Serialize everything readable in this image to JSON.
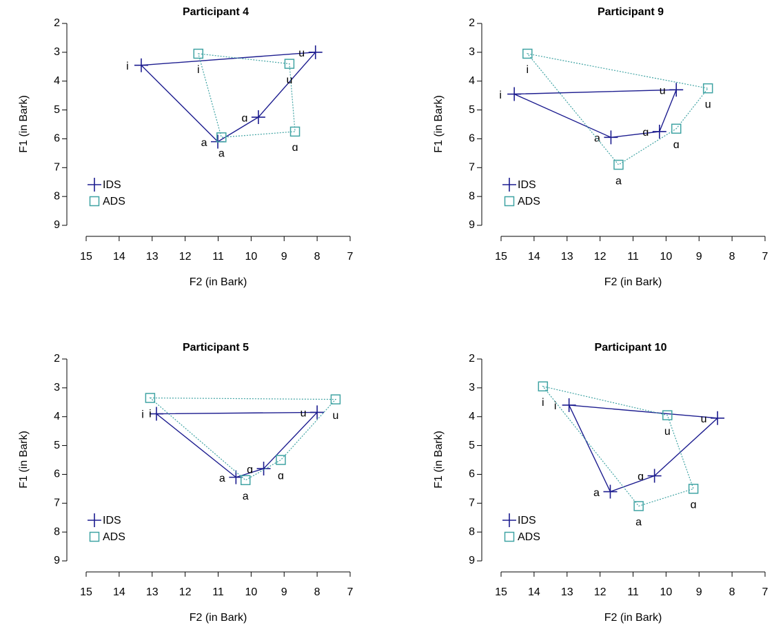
{
  "chart_data": [
    {
      "type": "scatter",
      "title": "Participant 4",
      "xlabel": "F2 (in Bark)",
      "ylabel": "F1 (in Bark)",
      "xlim": [
        15,
        7
      ],
      "ylim": [
        9,
        2
      ],
      "xticks": [
        15,
        14,
        13,
        12,
        11,
        10,
        9,
        8,
        7
      ],
      "yticks": [
        2,
        3,
        4,
        5,
        6,
        7,
        8,
        9
      ],
      "legend": "bottom left",
      "categories": [
        "i",
        "u",
        "ɑ",
        "a"
      ],
      "series": [
        {
          "name": "IDS",
          "color": "#1c1c8f",
          "marker": "plus",
          "line": "solid",
          "x": [
            13.33,
            8.05,
            9.78,
            11.01
          ],
          "values": [
            3.45,
            3.0,
            5.25,
            6.1
          ]
        },
        {
          "name": "ADS",
          "color": "#3fa3a3",
          "marker": "square",
          "line": "dotted",
          "x": [
            11.6,
            8.84,
            8.67,
            10.9
          ],
          "values": [
            3.05,
            3.4,
            5.75,
            5.95
          ]
        }
      ]
    },
    {
      "type": "scatter",
      "title": "Participant 9",
      "xlabel": "F2 (in Bark)",
      "ylabel": "F1 (in Bark)",
      "xlim": [
        15,
        7
      ],
      "ylim": [
        9,
        2
      ],
      "xticks": [
        15,
        14,
        13,
        12,
        11,
        10,
        9,
        8,
        7
      ],
      "yticks": [
        2,
        3,
        4,
        5,
        6,
        7,
        8,
        9
      ],
      "legend": "bottom left",
      "categories": [
        "i",
        "u",
        "ɑ",
        "a"
      ],
      "series": [
        {
          "name": "IDS",
          "color": "#1c1c8f",
          "marker": "plus",
          "line": "solid",
          "x": [
            14.6,
            9.69,
            10.2,
            11.67
          ],
          "values": [
            4.45,
            4.3,
            5.75,
            5.95
          ]
        },
        {
          "name": "ADS",
          "color": "#3fa3a3",
          "marker": "square",
          "line": "dotted",
          "x": [
            14.2,
            8.73,
            9.69,
            11.44
          ],
          "values": [
            3.05,
            4.25,
            5.65,
            6.9
          ]
        }
      ]
    },
    {
      "type": "scatter",
      "title": "Participant 5",
      "xlabel": "F2 (in Bark)",
      "ylabel": "F1 (in Bark)",
      "xlim": [
        15,
        7
      ],
      "ylim": [
        9,
        2
      ],
      "xticks": [
        15,
        14,
        13,
        12,
        11,
        10,
        9,
        8,
        7
      ],
      "yticks": [
        2,
        3,
        4,
        5,
        6,
        7,
        8,
        9
      ],
      "legend": "bottom left",
      "categories": [
        "i",
        "u",
        "ɑ",
        "a"
      ],
      "series": [
        {
          "name": "IDS",
          "color": "#1c1c8f",
          "marker": "plus",
          "line": "solid",
          "x": [
            12.87,
            8.0,
            9.62,
            10.46
          ],
          "values": [
            3.9,
            3.85,
            5.8,
            6.1
          ]
        },
        {
          "name": "ADS",
          "color": "#3fa3a3",
          "marker": "square",
          "line": "dotted",
          "x": [
            13.06,
            7.44,
            9.1,
            10.17
          ],
          "values": [
            3.35,
            3.4,
            5.5,
            6.2
          ]
        }
      ]
    },
    {
      "type": "scatter",
      "title": "Participant 10",
      "xlabel": "F2 (in Bark)",
      "ylabel": "F1 (in Bark)",
      "xlim": [
        15,
        7
      ],
      "ylim": [
        9,
        2
      ],
      "xticks": [
        15,
        14,
        13,
        12,
        11,
        10,
        9,
        8,
        7
      ],
      "yticks": [
        2,
        3,
        4,
        5,
        6,
        7,
        8,
        9
      ],
      "legend": "bottom left",
      "categories": [
        "i",
        "u",
        "ɑ",
        "a"
      ],
      "series": [
        {
          "name": "IDS",
          "color": "#1c1c8f",
          "marker": "plus",
          "line": "solid",
          "x": [
            12.94,
            8.44,
            10.35,
            11.69
          ],
          "values": [
            3.6,
            4.05,
            6.05,
            6.6
          ]
        },
        {
          "name": "ADS",
          "color": "#3fa3a3",
          "marker": "square",
          "line": "dotted",
          "x": [
            13.73,
            9.96,
            9.17,
            10.83
          ],
          "values": [
            2.95,
            3.95,
            6.5,
            7.1
          ]
        }
      ]
    }
  ]
}
